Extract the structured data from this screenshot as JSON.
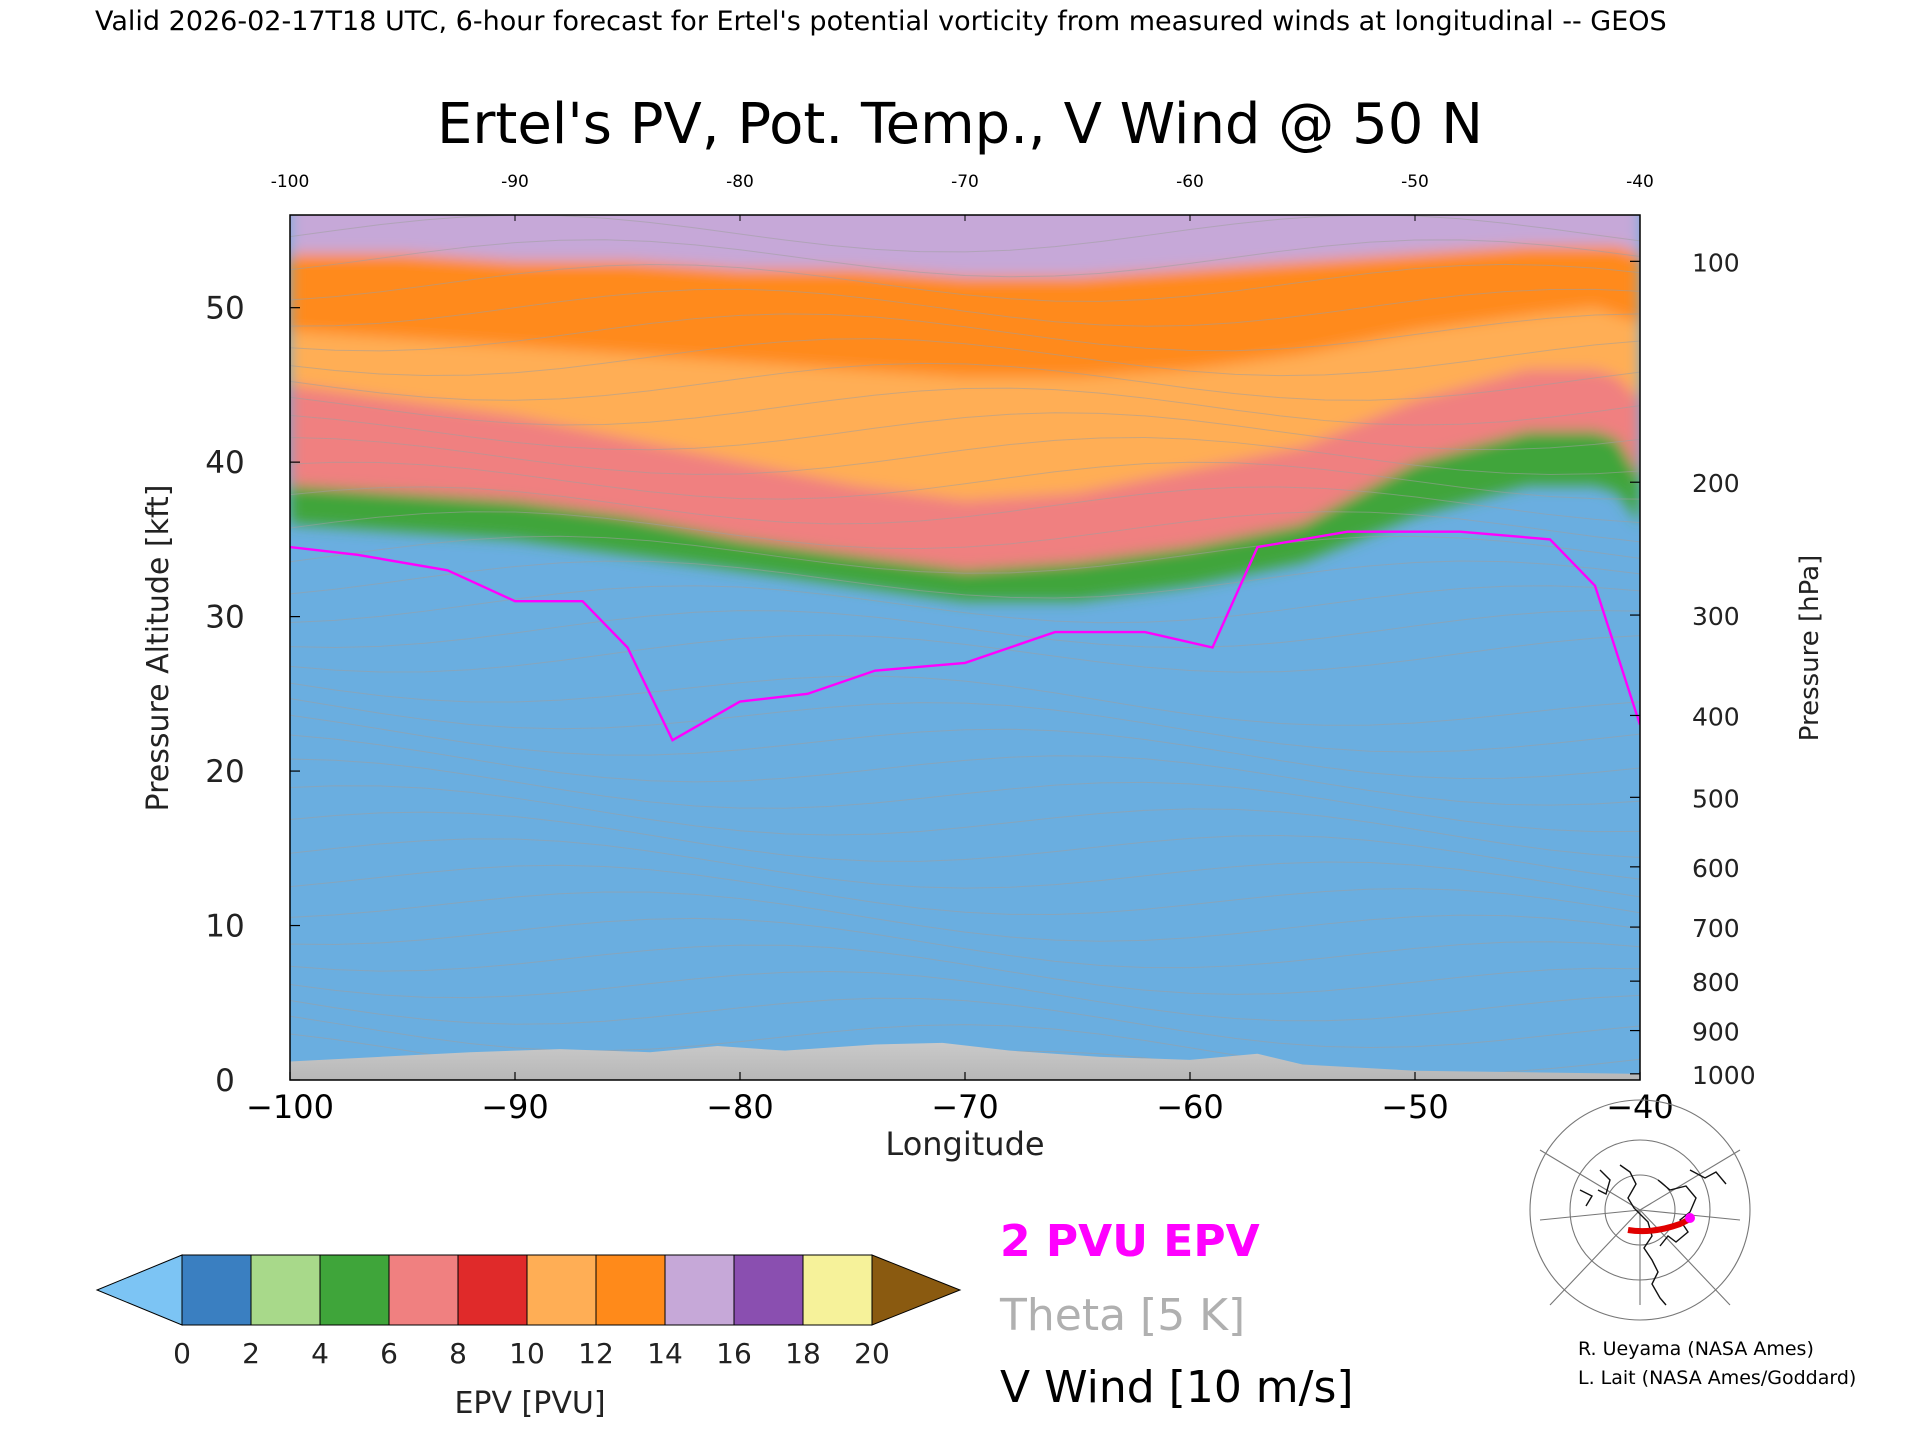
{
  "header": "Valid 2026-02-17T18 UTC, 6-hour forecast for Ertel's potential vorticity from measured winds at longitudinal -- GEOS",
  "chart_data": {
    "type": "heatmap",
    "title": "Ertel's PV, Pot. Temp., V Wind @ 50 N",
    "xlabel": "Longitude",
    "ylabel": "Pressure Altitude [kft]",
    "y2label": "Pressure [hPa]",
    "xlim": [
      -100,
      -40
    ],
    "ylim": [
      0,
      56
    ],
    "x_ticks": [
      -100,
      -90,
      -80,
      -70,
      -60,
      -50,
      -40
    ],
    "x_top_ticks": [
      -100,
      -90,
      -80,
      -70,
      -60,
      -50,
      -40
    ],
    "y_ticks": [
      0,
      10,
      20,
      30,
      40,
      50
    ],
    "pressure_ticks": [
      {
        "hpa": 100,
        "kft": 53
      },
      {
        "hpa": 200,
        "kft": 38.7
      },
      {
        "hpa": 300,
        "kft": 30.1
      },
      {
        "hpa": 400,
        "kft": 23.6
      },
      {
        "hpa": 500,
        "kft": 18.3
      },
      {
        "hpa": 600,
        "kft": 13.8
      },
      {
        "hpa": 700,
        "kft": 9.9
      },
      {
        "hpa": 800,
        "kft": 6.4
      },
      {
        "hpa": 900,
        "kft": 3.2
      },
      {
        "hpa": 1000,
        "kft": 0.4
      }
    ],
    "tropopause_2pvu_kft": [
      {
        "lon": -100,
        "kft": 34.5
      },
      {
        "lon": -97,
        "kft": 34
      },
      {
        "lon": -93,
        "kft": 33
      },
      {
        "lon": -90,
        "kft": 31
      },
      {
        "lon": -87,
        "kft": 31
      },
      {
        "lon": -85,
        "kft": 28
      },
      {
        "lon": -83,
        "kft": 22
      },
      {
        "lon": -80,
        "kft": 24.5
      },
      {
        "lon": -77,
        "kft": 25
      },
      {
        "lon": -74,
        "kft": 26.5
      },
      {
        "lon": -70,
        "kft": 27
      },
      {
        "lon": -66,
        "kft": 29
      },
      {
        "lon": -62,
        "kft": 29
      },
      {
        "lon": -59,
        "kft": 28
      },
      {
        "lon": -57,
        "kft": 34.5
      },
      {
        "lon": -53,
        "kft": 35.5
      },
      {
        "lon": -48,
        "kft": 35.5
      },
      {
        "lon": -44,
        "kft": 35
      },
      {
        "lon": -42,
        "kft": 32
      },
      {
        "lon": -40,
        "kft": 23
      }
    ],
    "epv_bands_kft": [
      {
        "pvu": 4,
        "kft": [
          36,
          35.5,
          35,
          34,
          33,
          32,
          31,
          31,
          32,
          33.5,
          36.5,
          38.5,
          38.5,
          38,
          36
        ]
      },
      {
        "pvu": 6,
        "kft": [
          38.5,
          38,
          37.5,
          36.5,
          35,
          34,
          33,
          33.5,
          34.5,
          36,
          40,
          42,
          42,
          41.5,
          39
        ]
      },
      {
        "pvu": 10,
        "kft": [
          45,
          44,
          43,
          41.5,
          40,
          38.5,
          37.5,
          38,
          39.5,
          41,
          44,
          46,
          46,
          45.5,
          44
        ]
      },
      {
        "pvu": 12,
        "kft": [
          48.5,
          48,
          47.5,
          47,
          46.5,
          46,
          45.5,
          45.5,
          46,
          47,
          48.5,
          49.5,
          50,
          49.5,
          49
        ]
      },
      {
        "pvu": 14,
        "kft": [
          53.5,
          53.5,
          53,
          53,
          52.5,
          52.5,
          52,
          52,
          52.5,
          53,
          53.5,
          54,
          54,
          54,
          53.5
        ]
      }
    ],
    "band_lons": [
      -100,
      -95,
      -90,
      -85,
      -80,
      -75,
      -70,
      -65,
      -60,
      -55,
      -50,
      -45,
      -42,
      -41,
      -40
    ],
    "colorbar": {
      "label": "EPV [PVU]",
      "ticks": [
        0,
        2,
        4,
        6,
        8,
        10,
        12,
        14,
        16,
        18,
        20
      ],
      "colors": [
        "#3a7fc1",
        "#a8d98a",
        "#3fa53a",
        "#f08080",
        "#e02a2a",
        "#ffae55",
        "#ff8a1a",
        "#c6a8d8",
        "#8a4fb0",
        "#f6f29a"
      ],
      "under_color": "#7cc4f4",
      "over_color": "#8a5a10"
    },
    "legend": [
      {
        "text": "2 PVU EPV",
        "color": "#ff00ff"
      },
      {
        "text": "Theta [5 K]",
        "color": "#b0b0b0"
      },
      {
        "text": "V Wind [10 m/s]",
        "color": "#000000"
      }
    ]
  },
  "credits": [
    "R. Ueyama (NASA Ames)",
    "L. Lait (NASA Ames/Goddard)"
  ]
}
